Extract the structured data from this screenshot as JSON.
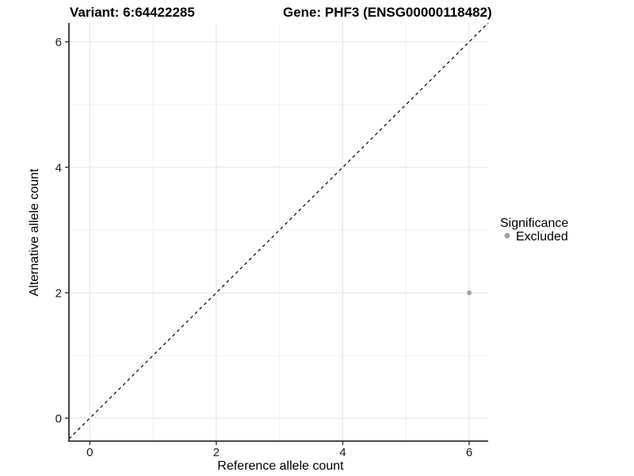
{
  "header": {
    "title_left": "Variant: 6:64422285",
    "title_right": "Gene: PHF3 (ENSG00000118482)"
  },
  "legend": {
    "title": "Significance",
    "items": [
      {
        "label": "Excluded",
        "color": "#a3a3a3"
      }
    ]
  },
  "chart_data": {
    "type": "scatter",
    "title": "Variant: 6:64422285  Gene: PHF3 (ENSG00000118482)",
    "xlabel": "Reference allele count",
    "ylabel": "Alternative allele count",
    "xlim": [
      -0.33,
      6.3
    ],
    "ylim": [
      -0.365,
      6.3
    ],
    "x_ticks": [
      0,
      2,
      4,
      6
    ],
    "y_ticks": [
      0,
      2,
      4,
      6
    ],
    "x_minor_ticks": [
      1,
      3,
      5
    ],
    "y_minor_ticks": [
      1,
      3,
      5
    ],
    "grid": true,
    "legend_position": "right",
    "identity_line": {
      "type": "abline",
      "slope": 1,
      "intercept": 0,
      "style": "dashed",
      "color": "#000000"
    },
    "series": [
      {
        "name": "Excluded",
        "color": "#a3a3a3",
        "points": [
          {
            "x": 6,
            "y": 2
          }
        ]
      }
    ],
    "colors": {
      "grid_major": "#e3e3e3",
      "grid_minor": "#f1f1f1",
      "axis_line": "#333333",
      "tick_mark": "#333333",
      "point": "#a3a3a3"
    }
  }
}
